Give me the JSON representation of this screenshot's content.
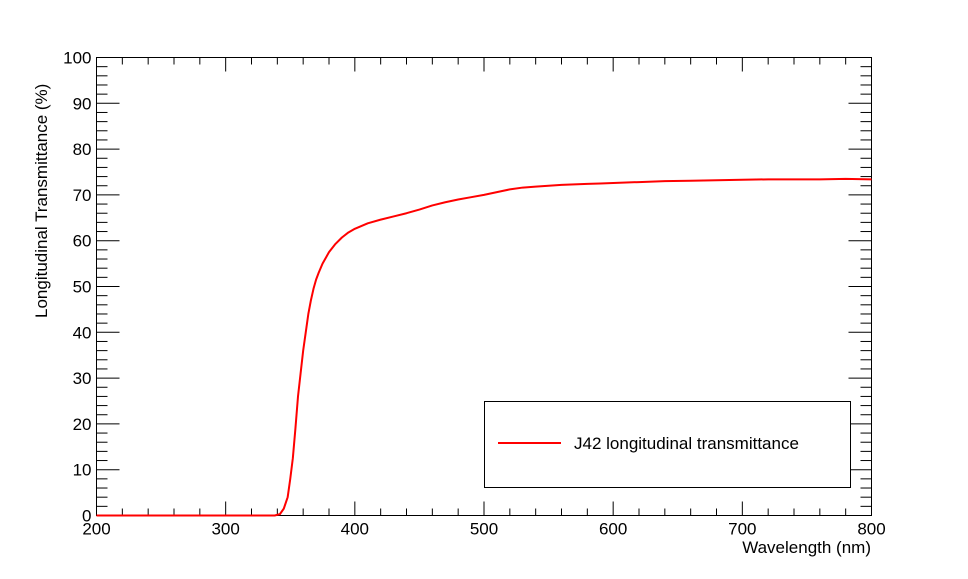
{
  "chart_data": {
    "type": "line",
    "title": "",
    "xlabel": "Wavelength (nm)",
    "ylabel": "Longitudinal Transmittance (%)",
    "xlim": [
      200,
      800
    ],
    "ylim": [
      0,
      100
    ],
    "x_ticks": [
      "200",
      "300",
      "400",
      "500",
      "600",
      "700",
      "800"
    ],
    "y_ticks": [
      "0",
      "10",
      "20",
      "30",
      "40",
      "50",
      "60",
      "70",
      "80",
      "90",
      "100"
    ],
    "grid": false,
    "legend_position": "bottom-right",
    "series": [
      {
        "name": "J42 longitudinal transmittance",
        "color": "#ff0000",
        "x": [
          200,
          210,
          220,
          230,
          240,
          250,
          260,
          270,
          280,
          290,
          300,
          310,
          320,
          330,
          338,
          342,
          345,
          348,
          350,
          352,
          354,
          356,
          358,
          360,
          362,
          364,
          366,
          368,
          370,
          372,
          375,
          378,
          380,
          385,
          390,
          395,
          400,
          410,
          420,
          430,
          440,
          450,
          460,
          470,
          480,
          490,
          500,
          510,
          520,
          530,
          540,
          550,
          560,
          570,
          580,
          590,
          600,
          620,
          640,
          660,
          680,
          700,
          720,
          740,
          760,
          780,
          800
        ],
        "y": [
          0,
          0,
          0,
          0,
          0,
          0,
          0,
          0,
          0,
          0,
          0,
          0,
          0,
          0,
          0,
          0.3,
          1.5,
          4,
          8,
          12.5,
          19,
          26,
          31,
          36,
          40,
          44,
          47,
          49.5,
          51.5,
          53,
          55,
          56.5,
          57.5,
          59.3,
          60.7,
          61.8,
          62.6,
          63.8,
          64.6,
          65.3,
          66,
          66.8,
          67.7,
          68.4,
          69,
          69.5,
          70,
          70.6,
          71.2,
          71.6,
          71.8,
          72,
          72.2,
          72.3,
          72.4,
          72.5,
          72.6,
          72.8,
          73,
          73.1,
          73.2,
          73.3,
          73.4,
          73.4,
          73.4,
          73.5,
          73.4
        ]
      }
    ]
  }
}
